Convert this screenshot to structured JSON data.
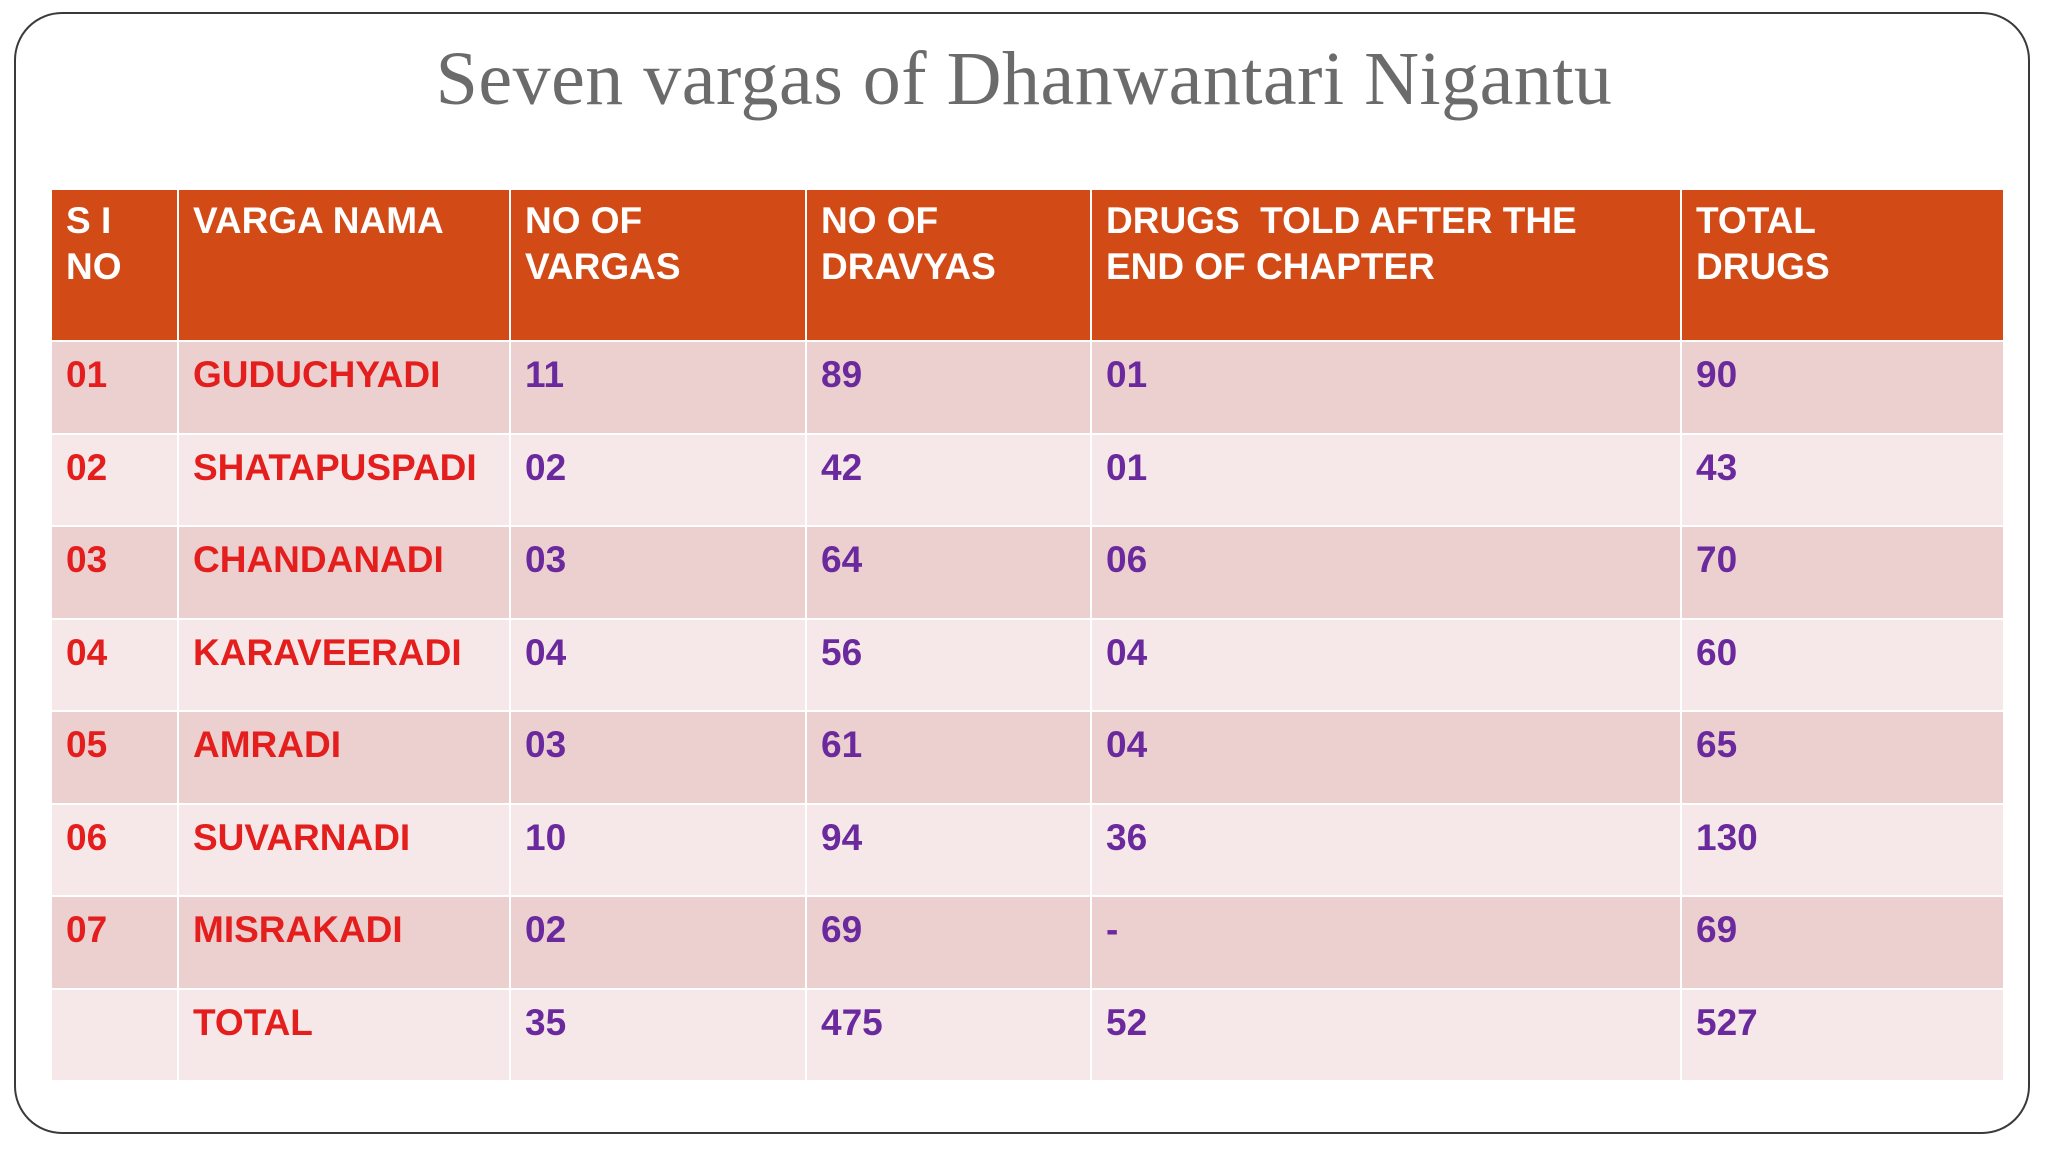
{
  "title": "Seven vargas of Dhanwantari Nigantu",
  "colors": {
    "header_bg": "#d24b17",
    "header_text": "#ffffff",
    "row_odd_bg": "#eccfcf",
    "row_even_bg": "#f6e8e8",
    "sno_name_text": "#e41d1d",
    "number_text": "#6a2a9e",
    "title_text": "#6b6b6b"
  },
  "table": {
    "headers": [
      [
        "S I",
        "NO"
      ],
      [
        "VARGA NAMA"
      ],
      [
        "NO OF",
        "VARGAS"
      ],
      [
        "NO OF",
        "DRAVYAS"
      ],
      [
        "DRUGS  TOLD AFTER THE",
        "END OF CHAPTER"
      ],
      [
        "TOTAL",
        "DRUGS"
      ]
    ],
    "rows": [
      [
        "01",
        "GUDUCHYADI",
        "11",
        "89",
        "01",
        "90"
      ],
      [
        "02",
        "SHATAPUSPADI",
        "02",
        "42",
        "01",
        "43"
      ],
      [
        "03",
        "CHANDANADI",
        "03",
        "64",
        "06",
        "70"
      ],
      [
        "04",
        "KARAVEERADI",
        "04",
        "56",
        "04",
        "60"
      ],
      [
        "05",
        "AMRADI",
        "03",
        "61",
        "04",
        "65"
      ],
      [
        "06",
        "SUVARNADI",
        "10",
        "94",
        "36",
        "130"
      ],
      [
        "07",
        "MISRAKADI",
        "02",
        "69",
        "-",
        "69"
      ],
      [
        "",
        "TOTAL",
        "35",
        "475",
        "52",
        "527"
      ]
    ]
  }
}
